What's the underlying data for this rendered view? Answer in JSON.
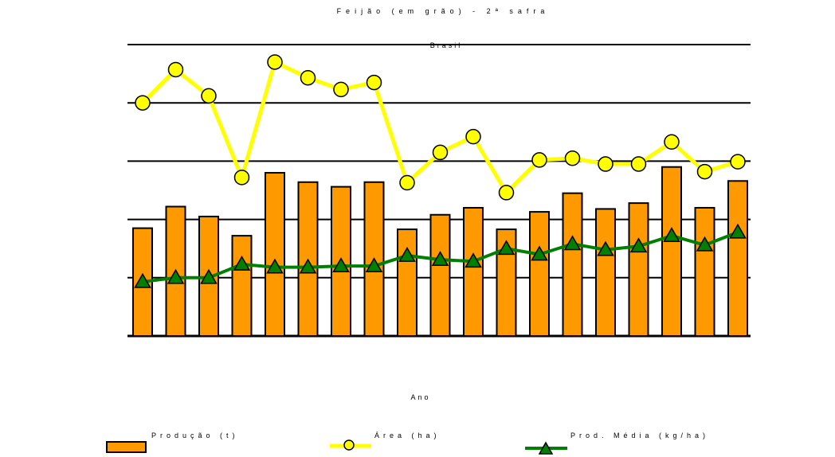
{
  "chart_data": {
    "type": "bar",
    "title": "Feijão (em grão) - 2ª safra",
    "subtitle": "Brasil",
    "xlabel": "Ano",
    "ylabel_left": "",
    "ylabel_right": "",
    "categories": [
      "",
      "",
      "",
      "",
      "",
      "",
      "",
      "",
      "",
      "",
      "",
      "",
      "",
      "",
      "",
      "",
      "",
      "",
      ""
    ],
    "left_axis": {
      "min": 0,
      "max": 5,
      "ticks": [
        0,
        1,
        2,
        3,
        4,
        5
      ],
      "tick_labels": [
        "",
        "",
        "",
        "",
        "",
        ""
      ]
    },
    "right_axis": {
      "min": 0,
      "max": 5,
      "ticks": [
        1,
        2,
        3,
        4,
        5
      ],
      "tick_labels": [
        "",
        "",
        "",
        "",
        ""
      ]
    },
    "grid": true,
    "legend_position": "bottom",
    "series": [
      {
        "name": "Produção (t)",
        "kind": "bar",
        "axis": "left",
        "color": "#FF9900",
        "values": [
          1.85,
          2.22,
          2.05,
          1.72,
          2.8,
          2.64,
          2.56,
          2.64,
          1.83,
          2.08,
          2.2,
          1.83,
          2.13,
          2.45,
          2.18,
          2.28,
          2.9,
          2.2,
          2.66
        ]
      },
      {
        "name": "Área (ha)",
        "kind": "line",
        "axis": "right",
        "color": "#FFFF00",
        "marker": "circle",
        "values": [
          4.0,
          4.57,
          4.12,
          2.72,
          4.7,
          4.43,
          4.23,
          4.35,
          2.63,
          3.15,
          3.42,
          2.46,
          3.02,
          3.05,
          2.95,
          2.95,
          3.33,
          2.82,
          2.99
        ]
      },
      {
        "name": "Prod. Média (kg/ha)",
        "kind": "line",
        "axis": "left",
        "color": "#008000",
        "marker": "triangle",
        "values": [
          0.93,
          1.0,
          1.0,
          1.23,
          1.18,
          1.18,
          1.2,
          1.2,
          1.38,
          1.31,
          1.28,
          1.5,
          1.4,
          1.58,
          1.48,
          1.54,
          1.72,
          1.56,
          1.78
        ]
      }
    ]
  }
}
